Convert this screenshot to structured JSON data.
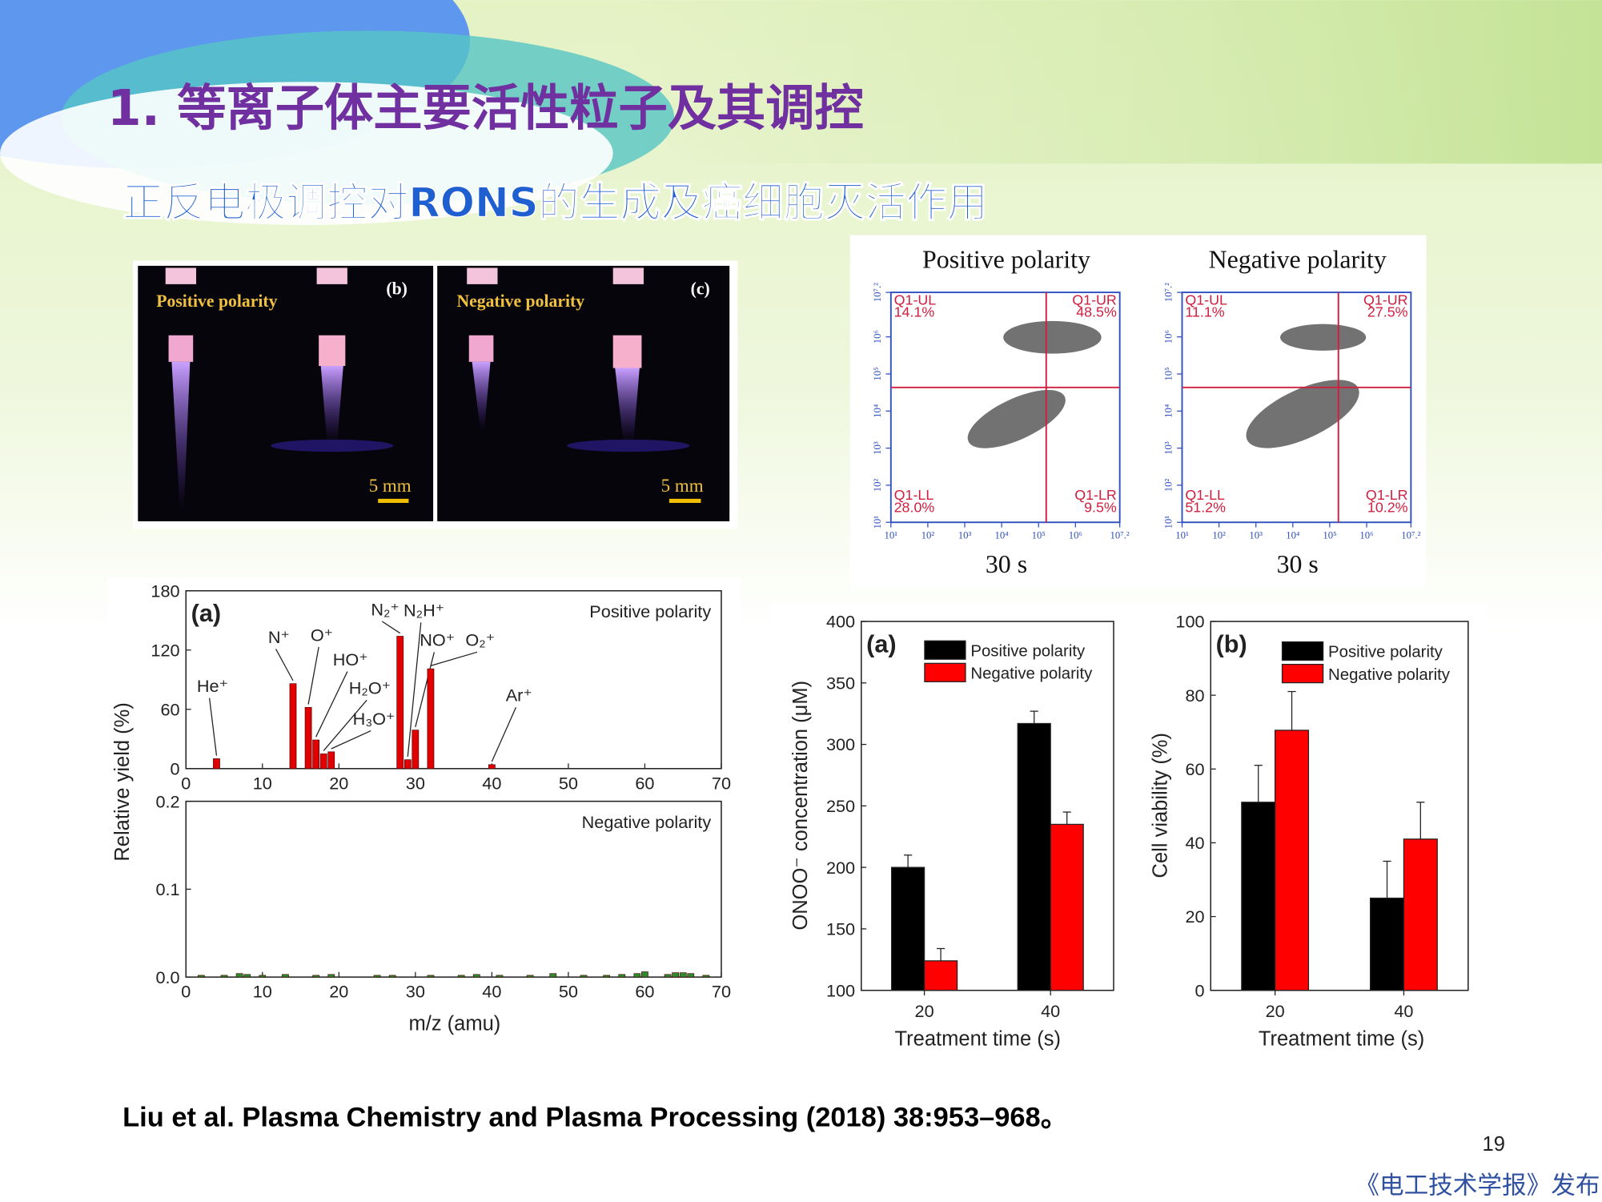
{
  "slide": {
    "title": "1. 等离子体主要活性粒子及其调控",
    "subtitle": "正反电极调控对RONS的生成及癌细胞灭活作用",
    "citation": "Liu et al. Plasma Chemistry and Plasma Processing (2018) 38:953–968。",
    "page_number": "19",
    "footer": "《电工技术学报》发布"
  },
  "photos": {
    "panels": [
      {
        "label": "Positive polarity",
        "tag": "(b)",
        "scale": "5 mm"
      },
      {
        "label": "Negative polarity",
        "tag": "(c)",
        "scale": "5 mm"
      }
    ]
  },
  "flow": {
    "ticks": [
      "10¹",
      "10²",
      "10³",
      "10⁴",
      "10⁵",
      "10⁶",
      "10⁷.²"
    ],
    "panels": [
      {
        "title": "Positive polarity",
        "time": "30 s",
        "quadrants": [
          {
            "name": "Q1-UL",
            "value": "14.1%"
          },
          {
            "name": "Q1-UR",
            "value": "48.5%"
          },
          {
            "name": "Q1-LL",
            "value": "28.0%"
          },
          {
            "name": "Q1-LR",
            "value": "9.5%"
          }
        ]
      },
      {
        "title": "Negative polarity",
        "time": "30 s",
        "quadrants": [
          {
            "name": "Q1-UL",
            "value": "11.1%"
          },
          {
            "name": "Q1-UR",
            "value": "27.5%"
          },
          {
            "name": "Q1-LL",
            "value": "51.2%"
          },
          {
            "name": "Q1-LR",
            "value": "10.2%"
          }
        ]
      }
    ]
  },
  "chart_data": [
    {
      "type": "bar",
      "panel_label": "(a)",
      "note": "Positive polarity",
      "ylabel": "Relative yield (%)",
      "x": [
        4,
        14,
        16,
        17,
        18,
        19,
        28,
        29,
        30,
        32,
        40
      ],
      "values": [
        10,
        86,
        62,
        29,
        15,
        17,
        134,
        9,
        39,
        101,
        4
      ],
      "peak_labels": [
        "He⁺",
        "N⁺",
        "O⁺",
        "HO⁺",
        "H₂O⁺",
        "H₃O⁺",
        "N₂⁺",
        "N₂H⁺",
        "NO⁺",
        "O₂⁺",
        "Ar⁺"
      ],
      "color": "#e00000",
      "xlim": [
        0,
        70
      ],
      "xticks": [
        0,
        10,
        20,
        30,
        40,
        50,
        60,
        70
      ],
      "ylim": [
        0,
        180
      ],
      "yticks": [
        0,
        60,
        120,
        180
      ]
    },
    {
      "type": "bar",
      "note": "Negative polarity",
      "xlabel": "m/z (amu)",
      "x": [
        2,
        5,
        7,
        8,
        10,
        13,
        17,
        19,
        25,
        27,
        32,
        36,
        38,
        41,
        45,
        48,
        52,
        55,
        57,
        59,
        60,
        63,
        64,
        65,
        66,
        68
      ],
      "values": [
        0.002,
        0.002,
        0.004,
        0.003,
        0.002,
        0.003,
        0.002,
        0.003,
        0.002,
        0.002,
        0.002,
        0.002,
        0.003,
        0.002,
        0.002,
        0.004,
        0.002,
        0.002,
        0.003,
        0.004,
        0.006,
        0.003,
        0.005,
        0.005,
        0.004,
        0.002
      ],
      "color": "#2d8a2d",
      "xlim": [
        0,
        70
      ],
      "xticks": [
        0,
        10,
        20,
        30,
        40,
        50,
        60,
        70
      ],
      "ylim": [
        0,
        0.2
      ],
      "yticks": [
        {
          "value": 0,
          "label": "0.0"
        },
        {
          "value": 0.1,
          "label": "0.1"
        },
        {
          "value": 0.2,
          "label": "0.2"
        }
      ]
    },
    {
      "type": "bar",
      "panel_label": "(a)",
      "ylabel": "ONOO⁻ concentration (μM)",
      "xlabel": "Treatment time (s)",
      "categories": [
        "20",
        "40"
      ],
      "series": [
        {
          "name": "Positive polarity",
          "color": "#000000",
          "values": [
            200,
            317
          ],
          "errors": [
            10,
            10
          ]
        },
        {
          "name": "Negative polarity",
          "color": "#ff0000",
          "values": [
            124,
            235
          ],
          "errors": [
            10,
            10
          ]
        }
      ],
      "ylim": [
        100,
        400
      ],
      "yticks": [
        100,
        150,
        200,
        250,
        300,
        350,
        400
      ]
    },
    {
      "type": "bar",
      "panel_label": "(b)",
      "ylabel": "Cell viability (%)",
      "xlabel": "Treatment time (s)",
      "categories": [
        "20",
        "40"
      ],
      "series": [
        {
          "name": "Positive polarity",
          "color": "#000000",
          "values": [
            51,
            25
          ],
          "errors": [
            10,
            10
          ]
        },
        {
          "name": "Negative polarity",
          "color": "#ff0000",
          "values": [
            70.5,
            41
          ],
          "errors": [
            10.5,
            10
          ]
        }
      ],
      "ylim": [
        0,
        100
      ],
      "yticks": [
        0,
        20,
        40,
        60,
        80,
        100
      ]
    }
  ]
}
